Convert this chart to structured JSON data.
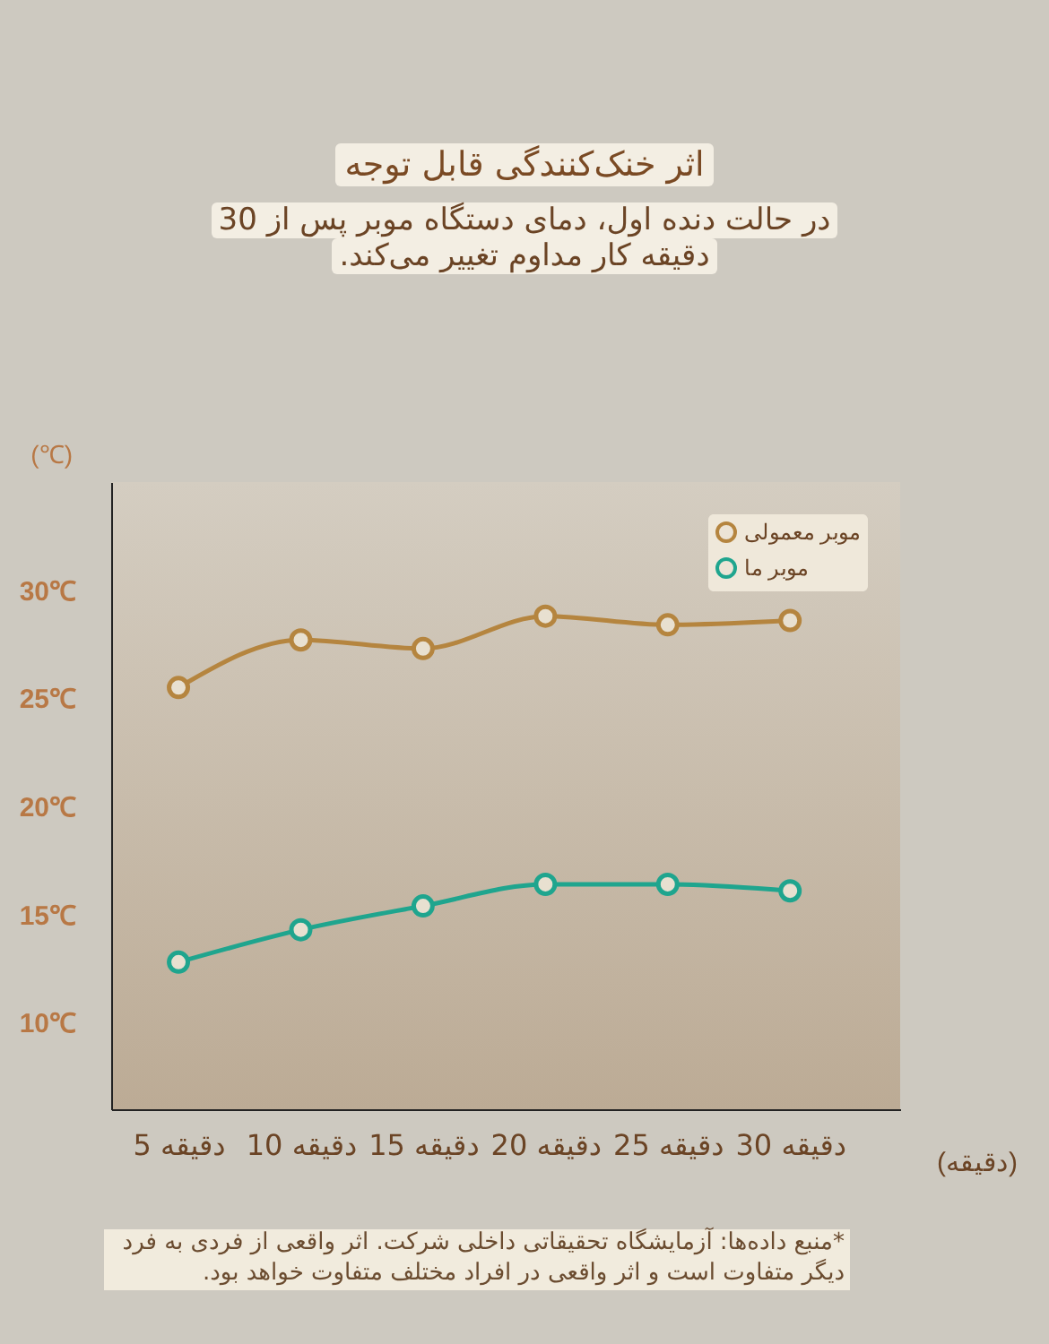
{
  "chart_data": {
    "type": "line",
    "title": "اثر خنک‌کنندگی قابل توجه",
    "subtitle": "در حالت دنده اول، دمای دستگاه موبر پس از 30 دقیقه کار مداوم تغییر می‌کند.",
    "xlabel": "(دقیقه)",
    "ylabel": "(℃)",
    "categories": [
      "5 دقیقه",
      "10 دقیقه",
      "15 دقیقه",
      "20 دقیقه",
      "25 دقیقه",
      "30 دقیقه"
    ],
    "series": [
      {
        "name": "موبر معمولی",
        "color": "#b5853f",
        "values": [
          25.5,
          27.7,
          27.3,
          28.8,
          28.4,
          28.6
        ]
      },
      {
        "name": "موبر ما",
        "color": "#1fa58e",
        "values": [
          12.8,
          14.3,
          15.4,
          16.4,
          16.4,
          16.1
        ]
      }
    ],
    "ylim": [
      6,
      35
    ],
    "yticks": [
      {
        "value": 10,
        "label": "10℃"
      },
      {
        "value": 15,
        "label": "15℃"
      },
      {
        "value": 20,
        "label": "20℃"
      },
      {
        "value": 25,
        "label": "25℃"
      },
      {
        "value": 30,
        "label": "30℃"
      }
    ],
    "legend": "top right",
    "marker": "circle",
    "line_style": "solid",
    "annotations": [
      "*منبع داده‌ها: آزمایشگاه تحقیقاتی داخلی شرکت. اثر واقعی از فردی به فرد دیگر متفاوت است و اثر واقعی در افراد مختلف متفاوت خواهد بود."
    ]
  }
}
